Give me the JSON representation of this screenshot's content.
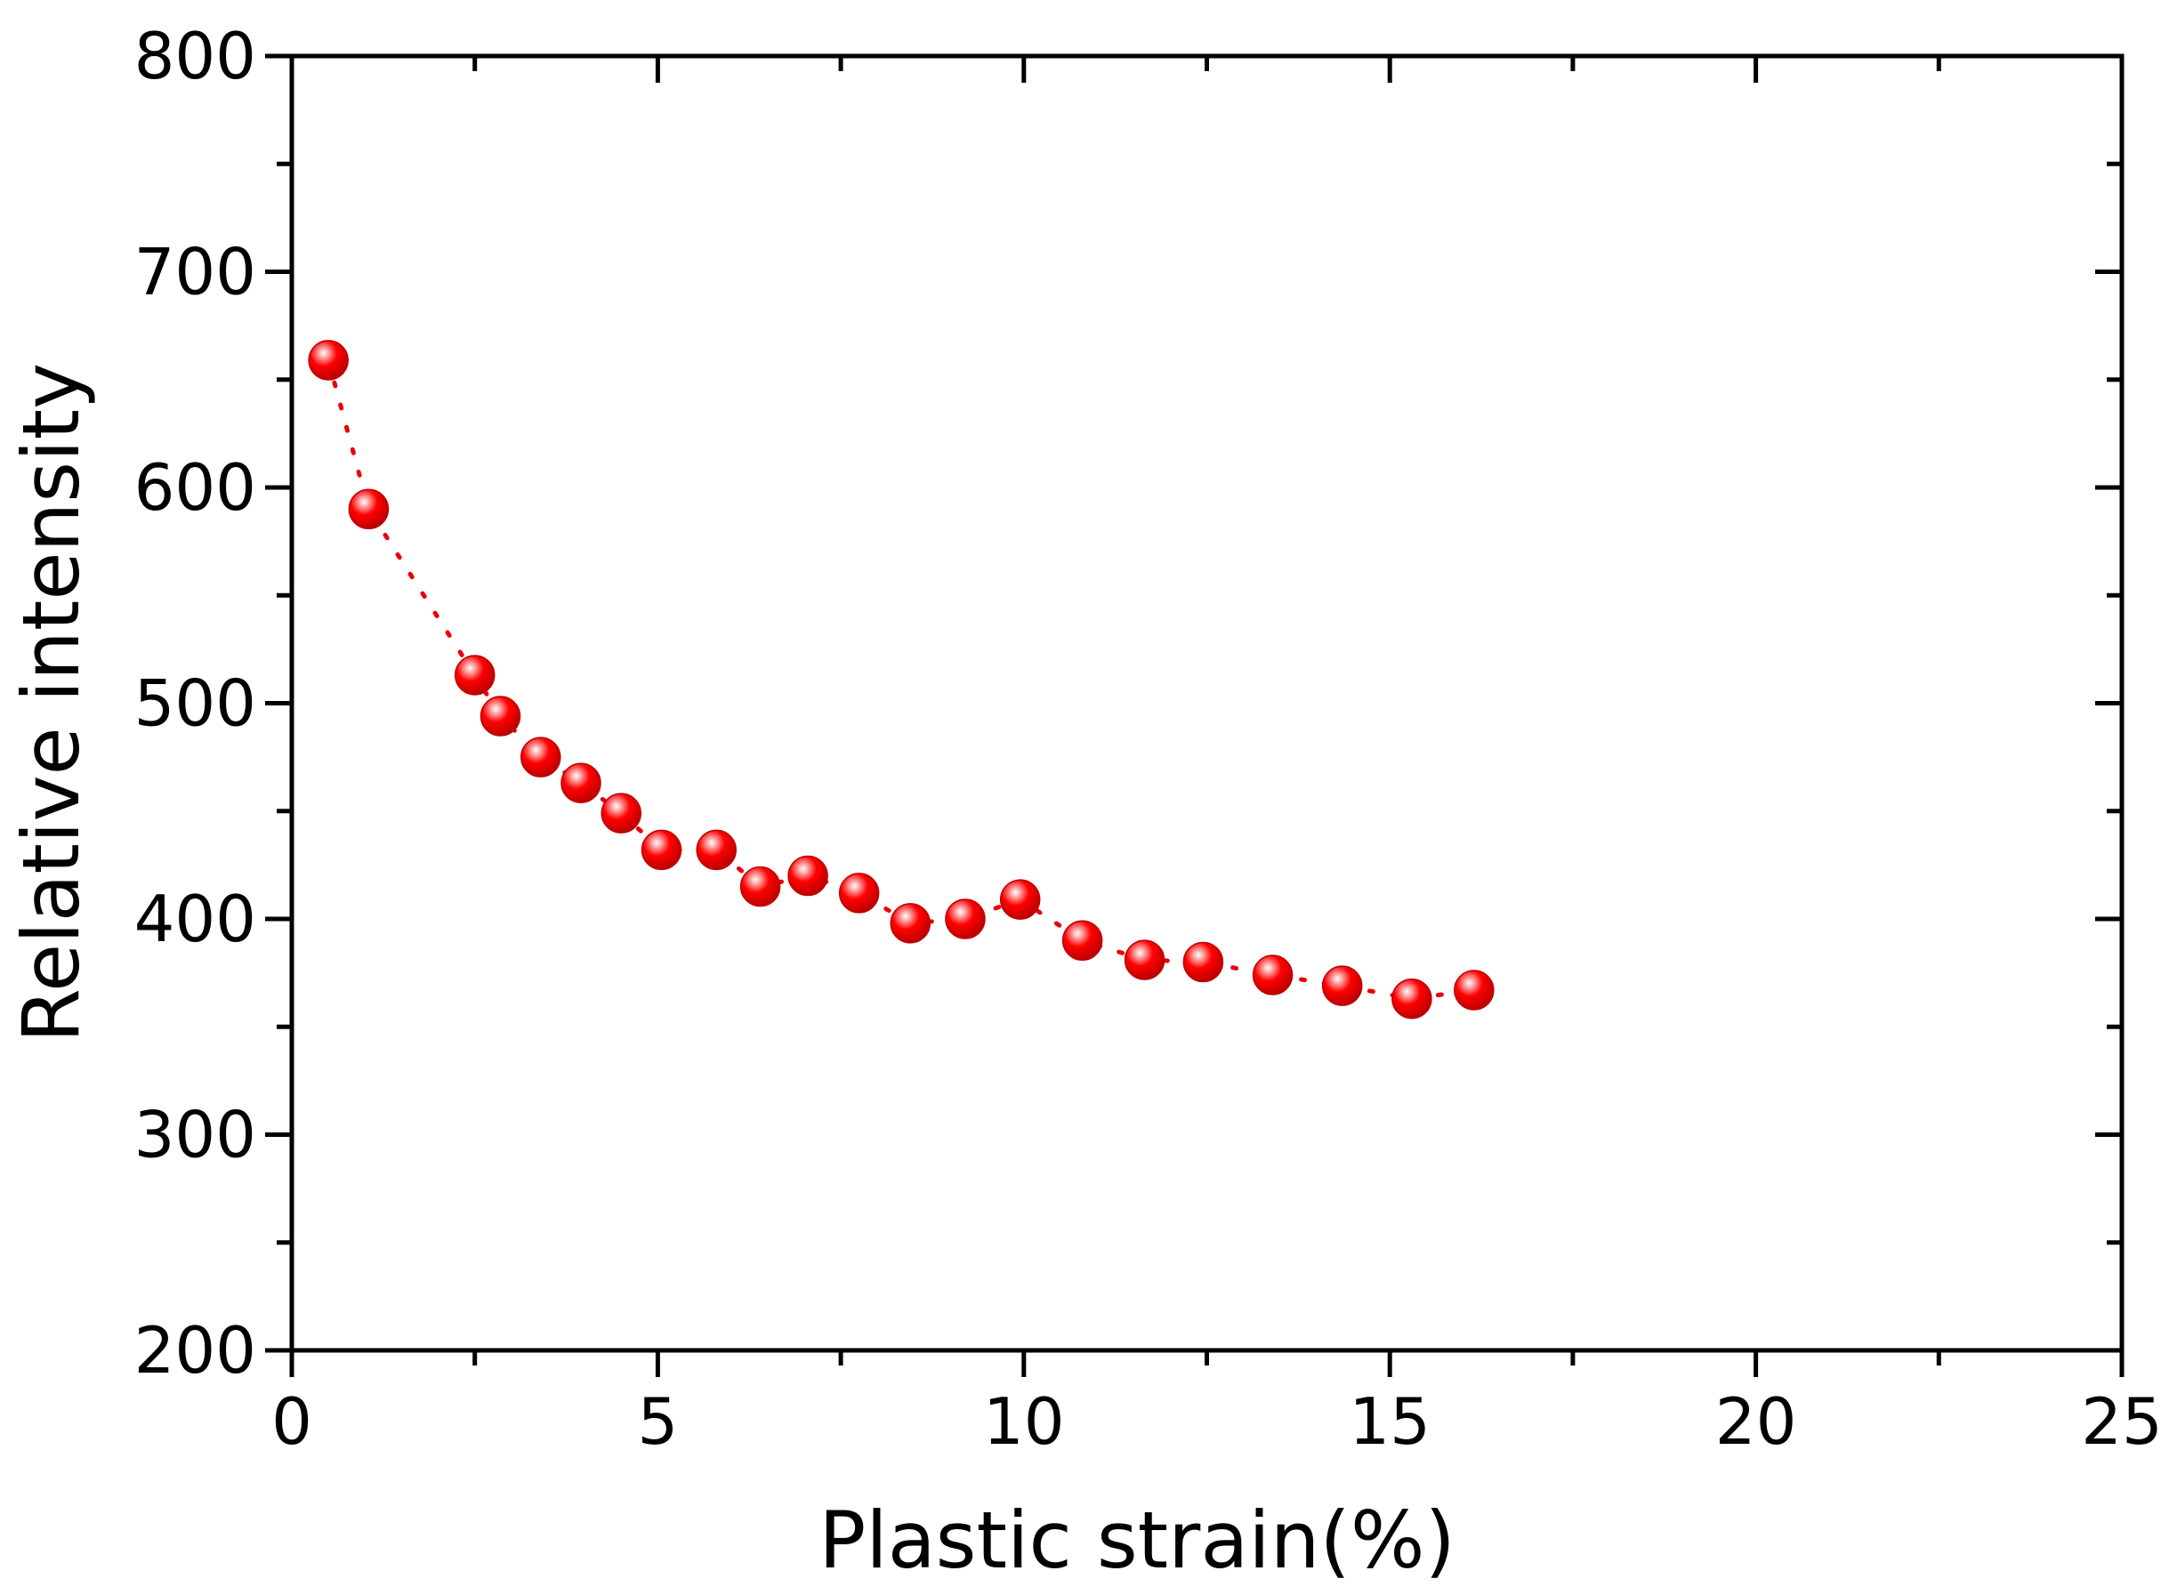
{
  "chart_data": {
    "type": "scatter",
    "title": "",
    "xlabel": "Plastic strain(%)",
    "ylabel": "Relative intensity",
    "xlim": [
      0,
      25
    ],
    "ylim": [
      200,
      800
    ],
    "x_ticks": [
      0,
      5,
      10,
      15,
      20,
      25
    ],
    "y_ticks": [
      200,
      300,
      400,
      500,
      600,
      700,
      800
    ],
    "grid": false,
    "legend": "none",
    "marker_color": "#e8000b",
    "connector": "dotted",
    "series": [
      {
        "x": [
          0.5,
          1.05,
          2.5,
          2.85,
          3.4,
          3.95,
          4.5,
          5.05,
          5.8,
          6.4,
          7.05,
          7.75,
          8.45,
          9.2,
          9.95,
          10.8,
          11.65,
          12.45,
          13.4,
          14.35,
          15.3,
          16.15
        ],
        "y": [
          659,
          590,
          513,
          494,
          475,
          463,
          449,
          432,
          432,
          415,
          420,
          412,
          398,
          400,
          409,
          390,
          381,
          380,
          374,
          369,
          363,
          367
        ]
      }
    ]
  }
}
